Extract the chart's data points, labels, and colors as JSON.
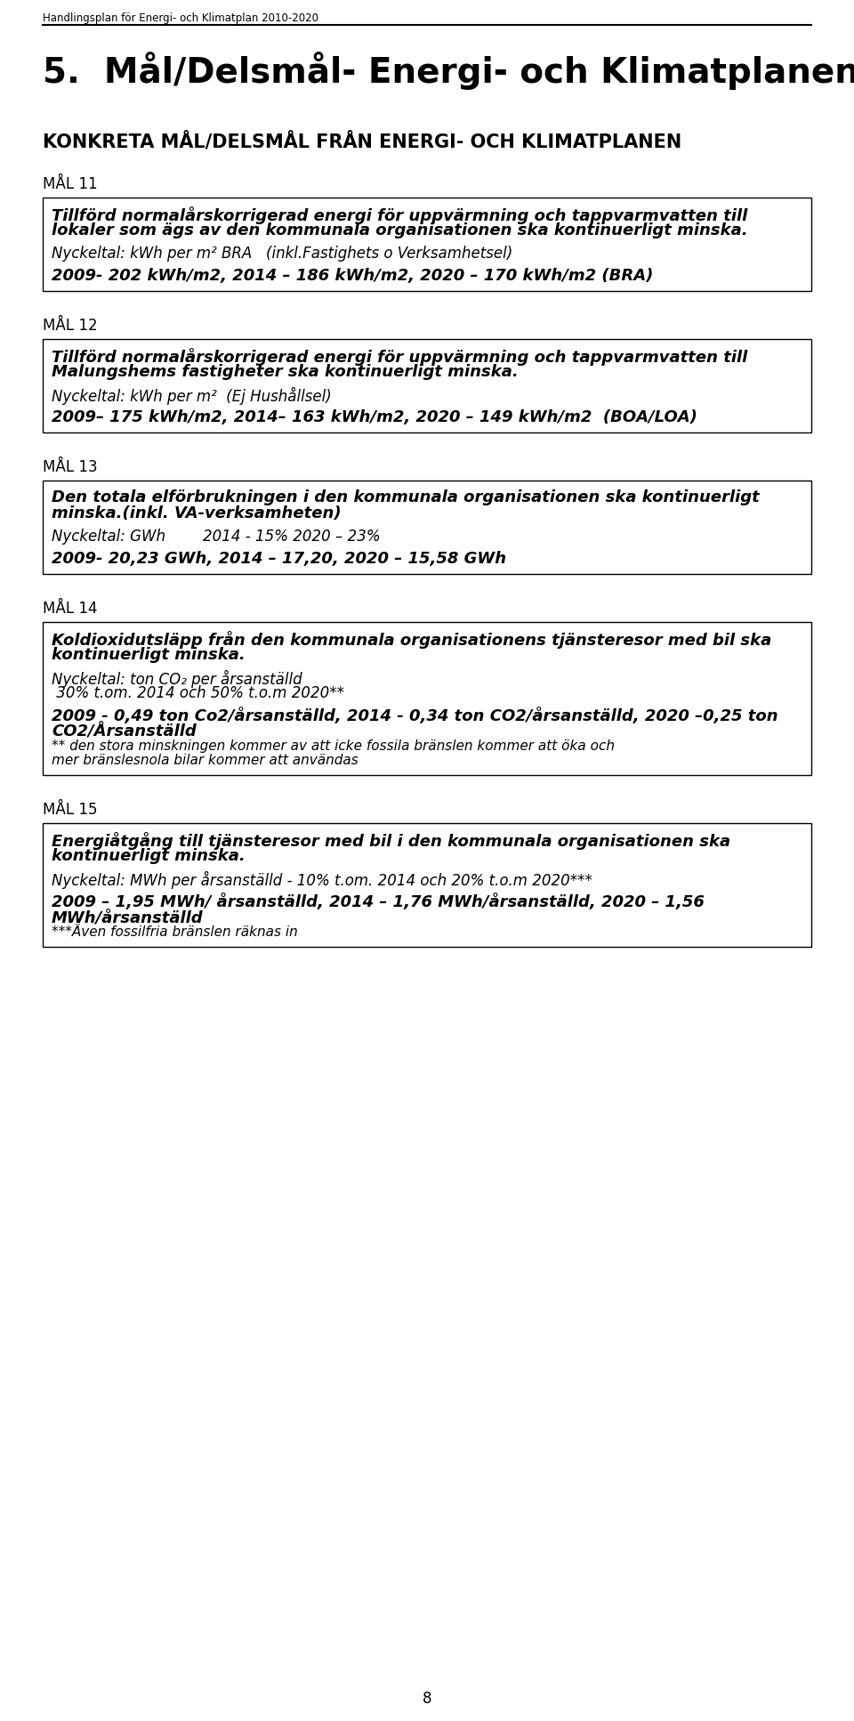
{
  "header": "Handlingsplan för Energi- och Klimatplan 2010-2020",
  "title": "5.  Mål/Delsmål- Energi- och Klimatplanen",
  "subtitle": "KONKRETA MÅL/DELSMÅL FRÅN ENERGI- OCH KLIMATPLANEN",
  "page_number": "8",
  "sections": [
    {
      "label": "MÅL 11",
      "box_lines": [
        {
          "text": "Tillförd normalårskorrigerad energi för uppvärmning och tappvarmvatten till",
          "style": "bold_italic",
          "size": 13
        },
        {
          "text": "lokaler som ägs av den kommunala organisationen ska kontinuerligt minska.",
          "style": "bold_italic",
          "size": 13
        },
        {
          "text": "",
          "style": "normal",
          "size": 8
        },
        {
          "text": "Nyckeltal: kWh per m² BRA   (inkl.Fastighets o Verksamhetsel)",
          "style": "italic",
          "size": 12
        },
        {
          "text": "",
          "style": "normal",
          "size": 8
        },
        {
          "text": "2009- 202 kWh/m2, 2014 – 186 kWh/m2, 2020 – 170 kWh/m2 (BRA)",
          "style": "bold_italic",
          "size": 13
        }
      ]
    },
    {
      "label": "MÅL 12",
      "box_lines": [
        {
          "text": "Tillförd normalårskorrigerad energi för uppvärmning och tappvarmvatten till",
          "style": "bold_italic",
          "size": 13
        },
        {
          "text": "Malungshems fastigheter ska kontinuerligt minska.",
          "style": "bold_italic",
          "size": 13
        },
        {
          "text": "",
          "style": "normal",
          "size": 8
        },
        {
          "text": "Nyckeltal: kWh per m²  (Ej Hushållsel)",
          "style": "italic",
          "size": 12
        },
        {
          "text": "",
          "style": "normal",
          "size": 8
        },
        {
          "text": "2009– 175 kWh/m2, 2014– 163 kWh/m2, 2020 – 149 kWh/m2  (BOA/LOA)",
          "style": "bold_italic",
          "size": 13
        }
      ]
    },
    {
      "label": "MÅL 13",
      "box_lines": [
        {
          "text": "Den totala elförbrukningen i den kommunala organisationen ska kontinuerligt",
          "style": "bold_italic",
          "size": 13
        },
        {
          "text": "minska.(inkl. VA-verksamheten)",
          "style": "bold_italic",
          "size": 13
        },
        {
          "text": "",
          "style": "normal",
          "size": 8
        },
        {
          "text": "Nyckeltal: GWh        2014 - 15% 2020 – 23%",
          "style": "italic",
          "size": 12
        },
        {
          "text": "",
          "style": "normal",
          "size": 8
        },
        {
          "text": "2009- 20,23 GWh, 2014 – 17,20, 2020 – 15,58 GWh",
          "style": "bold_italic",
          "size": 13
        }
      ]
    },
    {
      "label": "MÅL 14",
      "box_lines": [
        {
          "text": "Koldioxidutsläpp från den kommunala organisationens tjänsteresor med bil ska",
          "style": "bold_italic",
          "size": 13
        },
        {
          "text": "kontinuerligt minska.",
          "style": "bold_italic",
          "size": 13
        },
        {
          "text": "",
          "style": "normal",
          "size": 8
        },
        {
          "text": "Nyckeltal: ton CO₂ per årsanställd",
          "style": "italic",
          "size": 12
        },
        {
          "text": " 30% t.om. 2014 och 50% t.o.m 2020**",
          "style": "italic",
          "size": 12
        },
        {
          "text": "",
          "style": "normal",
          "size": 8
        },
        {
          "text": "2009 - 0,49 ton Co2/årsanställd, 2014 - 0,34 ton CO2/årsanställd, 2020 –0,25 ton",
          "style": "bold_italic",
          "size": 13
        },
        {
          "text": "CO2/Årsanställd",
          "style": "bold_italic",
          "size": 13
        },
        {
          "text": "** den stora minskningen kommer av att icke fossila bränslen kommer att öka och",
          "style": "italic",
          "size": 11
        },
        {
          "text": "mer bränslesnola bilar kommer att användas",
          "style": "italic",
          "size": 11
        }
      ]
    },
    {
      "label": "MÅL 15",
      "box_lines": [
        {
          "text": "Energiåtgång till tjänsteresor med bil i den kommunala organisationen ska",
          "style": "bold_italic",
          "size": 13
        },
        {
          "text": "kontinuerligt minska.",
          "style": "bold_italic",
          "size": 13
        },
        {
          "text": "",
          "style": "normal",
          "size": 8
        },
        {
          "text": "Nyckeltal: MWh per årsanställd - 10% t.om. 2014 och 20% t.o.m 2020***",
          "style": "italic",
          "size": 12
        },
        {
          "text": "",
          "style": "normal",
          "size": 8
        },
        {
          "text": "2009 – 1,95 MWh/ årsanställd, 2014 – 1,76 MWh/årsanställd, 2020 – 1,56",
          "style": "bold_italic",
          "size": 13
        },
        {
          "text": "MWh/årsanställd",
          "style": "bold_italic",
          "size": 13
        },
        {
          "text": "***Även fossilfria bränslen räknas in",
          "style": "italic",
          "size": 11
        }
      ]
    }
  ],
  "bg_color": "#ffffff",
  "text_color": "#000000",
  "border_color": "#000000"
}
